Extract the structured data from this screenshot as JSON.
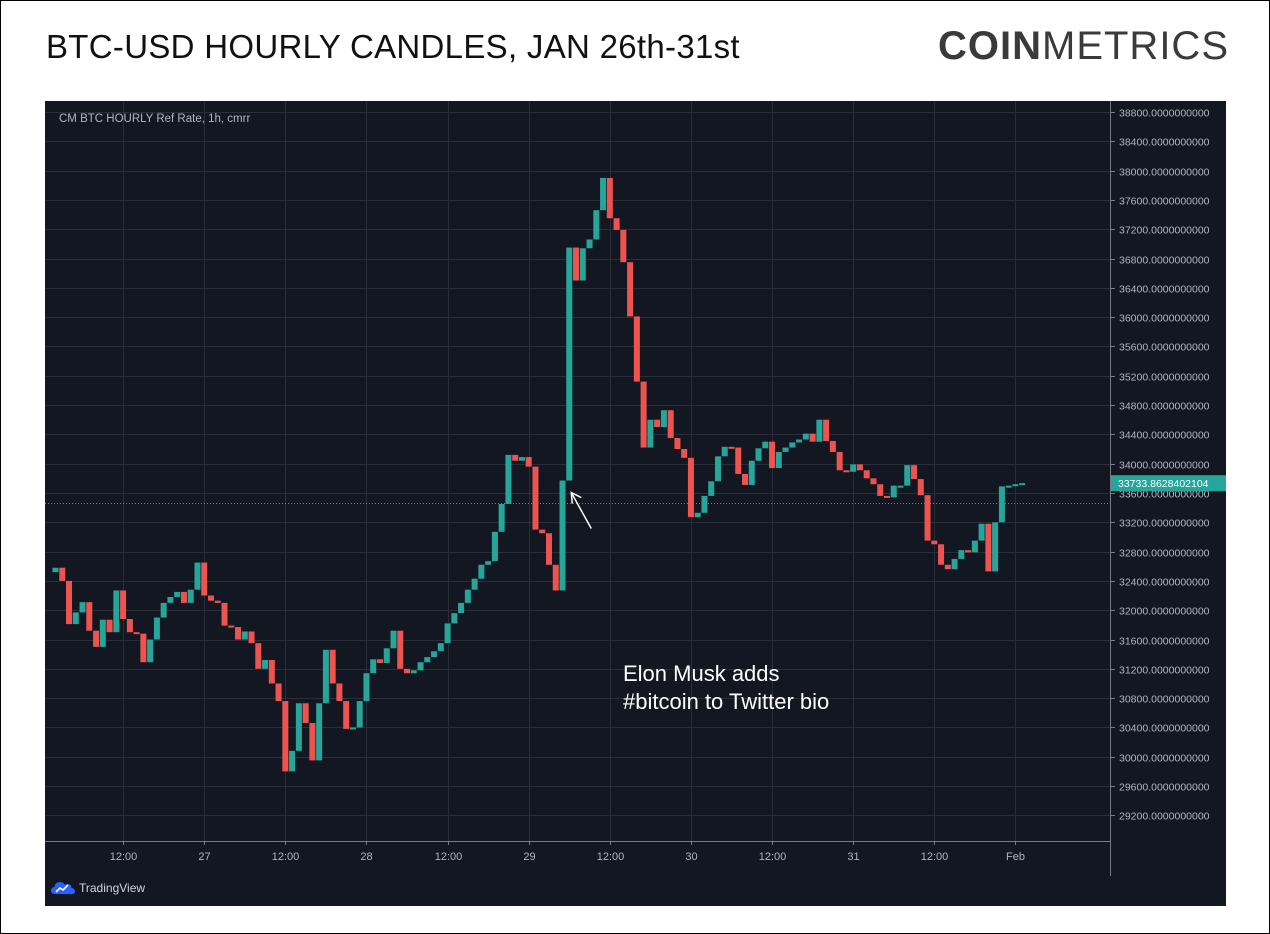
{
  "header": {
    "title": "BTC-USD HOURLY CANDLES, JAN 26th-31st",
    "logo_bold": "COIN",
    "logo_light": "METRICS"
  },
  "tradingview": {
    "label": "TradingView",
    "icon": "tradingview-cloud-icon"
  },
  "colors": {
    "background": "#131722",
    "grid": "#2a2e39",
    "text": "#b2b5be",
    "up": "#26a69a",
    "down": "#ef5350",
    "price_line": "#ef5350",
    "price_label_bg": "#26a69a"
  },
  "chart_data": {
    "type": "candlestick",
    "title": "BTC-USD HOURLY CANDLES, JAN 26th-31st",
    "series_label": "CM BTC HOURLY Ref Rate, 1h, cmrr",
    "ylim": [
      28850,
      38950
    ],
    "y_ticks": [
      29200,
      29600,
      30000,
      30400,
      30800,
      31200,
      31600,
      32000,
      32400,
      32800,
      33200,
      33600,
      34000,
      34400,
      34800,
      35200,
      35600,
      36000,
      36400,
      36800,
      37200,
      37600,
      38000,
      38400,
      38800
    ],
    "y_tick_labels": [
      "29200.0000000000",
      "29600.0000000000",
      "30000.0000000000",
      "30400.0000000000",
      "30800.0000000000",
      "31200.0000000000",
      "31600.0000000000",
      "32000.0000000000",
      "32400.0000000000",
      "32800.0000000000",
      "33200.0000000000",
      "33600.0000000000",
      "34000.0000000000",
      "34400.0000000000",
      "34800.0000000000",
      "35200.0000000000",
      "35600.0000000000",
      "36000.0000000000",
      "36400.0000000000",
      "36800.0000000000",
      "37200.0000000000",
      "37600.0000000000",
      "38000.0000000000",
      "38400.0000000000",
      "38800.0000000000"
    ],
    "x_ticks": [
      {
        "index": 10,
        "label": "12:00"
      },
      {
        "index": 22,
        "label": "27"
      },
      {
        "index": 34,
        "label": "12:00"
      },
      {
        "index": 46,
        "label": "28"
      },
      {
        "index": 58,
        "label": "12:00"
      },
      {
        "index": 70,
        "label": "29"
      },
      {
        "index": 82,
        "label": "12:00"
      },
      {
        "index": 94,
        "label": "30"
      },
      {
        "index": 106,
        "label": "12:00"
      },
      {
        "index": 118,
        "label": "31"
      },
      {
        "index": 130,
        "label": "12:00"
      },
      {
        "index": 142,
        "label": "Feb"
      }
    ],
    "last_price": 33733.8628402104,
    "last_price_label": "33733.8628402104",
    "dotted_level": 33460,
    "candles": [
      [
        32520,
        32580
      ],
      [
        32580,
        32400
      ],
      [
        32400,
        31810
      ],
      [
        31810,
        31970
      ],
      [
        31970,
        32110
      ],
      [
        32110,
        31720
      ],
      [
        31720,
        31500
      ],
      [
        31500,
        31870
      ],
      [
        31870,
        31700
      ],
      [
        31700,
        32270
      ],
      [
        32270,
        31880
      ],
      [
        31880,
        31700
      ],
      [
        31700,
        31680
      ],
      [
        31680,
        31290
      ],
      [
        31290,
        31600
      ],
      [
        31600,
        31900
      ],
      [
        31900,
        32100
      ],
      [
        32100,
        32180
      ],
      [
        32180,
        32250
      ],
      [
        32250,
        32100
      ],
      [
        32100,
        32280
      ],
      [
        32280,
        32650
      ],
      [
        32650,
        32200
      ],
      [
        32200,
        32130
      ],
      [
        32130,
        32100
      ],
      [
        32100,
        31790
      ],
      [
        31790,
        31770
      ],
      [
        31770,
        31600
      ],
      [
        31600,
        31710
      ],
      [
        31710,
        31550
      ],
      [
        31550,
        31200
      ],
      [
        31200,
        31320
      ],
      [
        31320,
        31000
      ],
      [
        31000,
        30760
      ],
      [
        30760,
        29800
      ],
      [
        29800,
        30080
      ],
      [
        30080,
        30730
      ],
      [
        30730,
        30460
      ],
      [
        30460,
        29950
      ],
      [
        29950,
        30730
      ],
      [
        30730,
        31460
      ],
      [
        31460,
        31000
      ],
      [
        31000,
        30760
      ],
      [
        30760,
        30380
      ],
      [
        30380,
        30400
      ],
      [
        30400,
        30760
      ],
      [
        30760,
        31140
      ],
      [
        31140,
        31330
      ],
      [
        31330,
        31280
      ],
      [
        31280,
        31480
      ],
      [
        31480,
        31720
      ],
      [
        31720,
        31200
      ],
      [
        31200,
        31140
      ],
      [
        31140,
        31180
      ],
      [
        31180,
        31290
      ],
      [
        31290,
        31360
      ],
      [
        31360,
        31440
      ],
      [
        31440,
        31550
      ],
      [
        31550,
        31820
      ],
      [
        31820,
        31960
      ],
      [
        31960,
        32100
      ],
      [
        32100,
        32280
      ],
      [
        32280,
        32430
      ],
      [
        32430,
        32620
      ],
      [
        32620,
        32670
      ],
      [
        32670,
        33070
      ],
      [
        33070,
        33450
      ],
      [
        33450,
        34120
      ],
      [
        34120,
        34040
      ],
      [
        34040,
        34090
      ],
      [
        34090,
        33960
      ],
      [
        33960,
        33100
      ],
      [
        33100,
        33050
      ],
      [
        33050,
        32620
      ],
      [
        32620,
        32270
      ],
      [
        32270,
        33770
      ],
      [
        33770,
        36950
      ],
      [
        36950,
        36500
      ],
      [
        36500,
        36940
      ],
      [
        36940,
        37060
      ],
      [
        37060,
        37460
      ],
      [
        37460,
        37900
      ],
      [
        37900,
        37350
      ],
      [
        37350,
        37190
      ],
      [
        37190,
        36750
      ],
      [
        36750,
        36010
      ],
      [
        36010,
        35120
      ],
      [
        35120,
        34220
      ],
      [
        34220,
        34600
      ],
      [
        34600,
        34500
      ],
      [
        34500,
        34730
      ],
      [
        34730,
        34350
      ],
      [
        34350,
        34200
      ],
      [
        34200,
        34080
      ],
      [
        34080,
        33270
      ],
      [
        33270,
        33330
      ],
      [
        33330,
        33560
      ],
      [
        33560,
        33760
      ],
      [
        33760,
        34100
      ],
      [
        34100,
        34230
      ],
      [
        34230,
        34220
      ],
      [
        34220,
        33860
      ],
      [
        33860,
        33710
      ],
      [
        33710,
        34040
      ],
      [
        34040,
        34210
      ],
      [
        34210,
        34300
      ],
      [
        34300,
        33940
      ],
      [
        33940,
        34160
      ],
      [
        34160,
        34220
      ],
      [
        34220,
        34290
      ],
      [
        34290,
        34330
      ],
      [
        34330,
        34410
      ],
      [
        34410,
        34300
      ],
      [
        34300,
        34600
      ],
      [
        34600,
        34310
      ],
      [
        34310,
        34160
      ],
      [
        34160,
        33910
      ],
      [
        33910,
        33890
      ],
      [
        33890,
        33990
      ],
      [
        33990,
        33910
      ],
      [
        33910,
        33800
      ],
      [
        33800,
        33720
      ],
      [
        33720,
        33560
      ],
      [
        33560,
        33540
      ],
      [
        33540,
        33700
      ],
      [
        33700,
        33700
      ],
      [
        33700,
        33980
      ],
      [
        33980,
        33790
      ],
      [
        33790,
        33570
      ],
      [
        33570,
        32950
      ],
      [
        32950,
        32900
      ],
      [
        32900,
        32620
      ],
      [
        32620,
        32560
      ],
      [
        32560,
        32700
      ],
      [
        32700,
        32820
      ],
      [
        32820,
        32790
      ],
      [
        32790,
        32950
      ],
      [
        32950,
        33180
      ],
      [
        33180,
        32530
      ],
      [
        32530,
        33200
      ],
      [
        33200,
        33690
      ],
      [
        33690,
        33700
      ],
      [
        33700,
        33720
      ],
      [
        33720,
        33734
      ]
    ]
  },
  "annotation": {
    "line1": "Elon Musk adds",
    "line2": "#bitcoin to Twitter bio",
    "candle_index": 76
  }
}
